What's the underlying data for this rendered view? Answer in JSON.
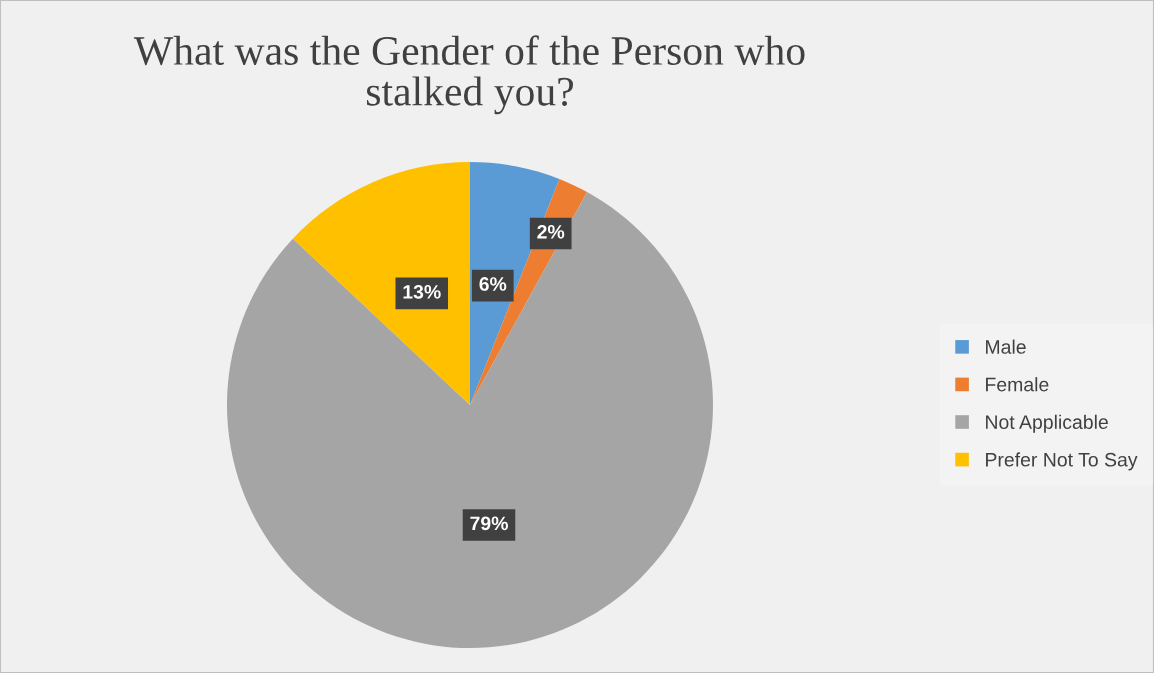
{
  "chart_data": {
    "type": "pie",
    "title": "What was the Gender of the Person who\nstalked you?",
    "categories": [
      "Male",
      "Female",
      "Not Applicable",
      "Prefer Not To Say"
    ],
    "values": [
      6,
      2,
      79,
      13
    ],
    "colors": [
      "#5b9bd5",
      "#ed7d31",
      "#a5a5a5",
      "#ffc000"
    ],
    "value_labels": [
      "6%",
      "2%",
      "79%",
      "13%"
    ],
    "legend": "right"
  }
}
